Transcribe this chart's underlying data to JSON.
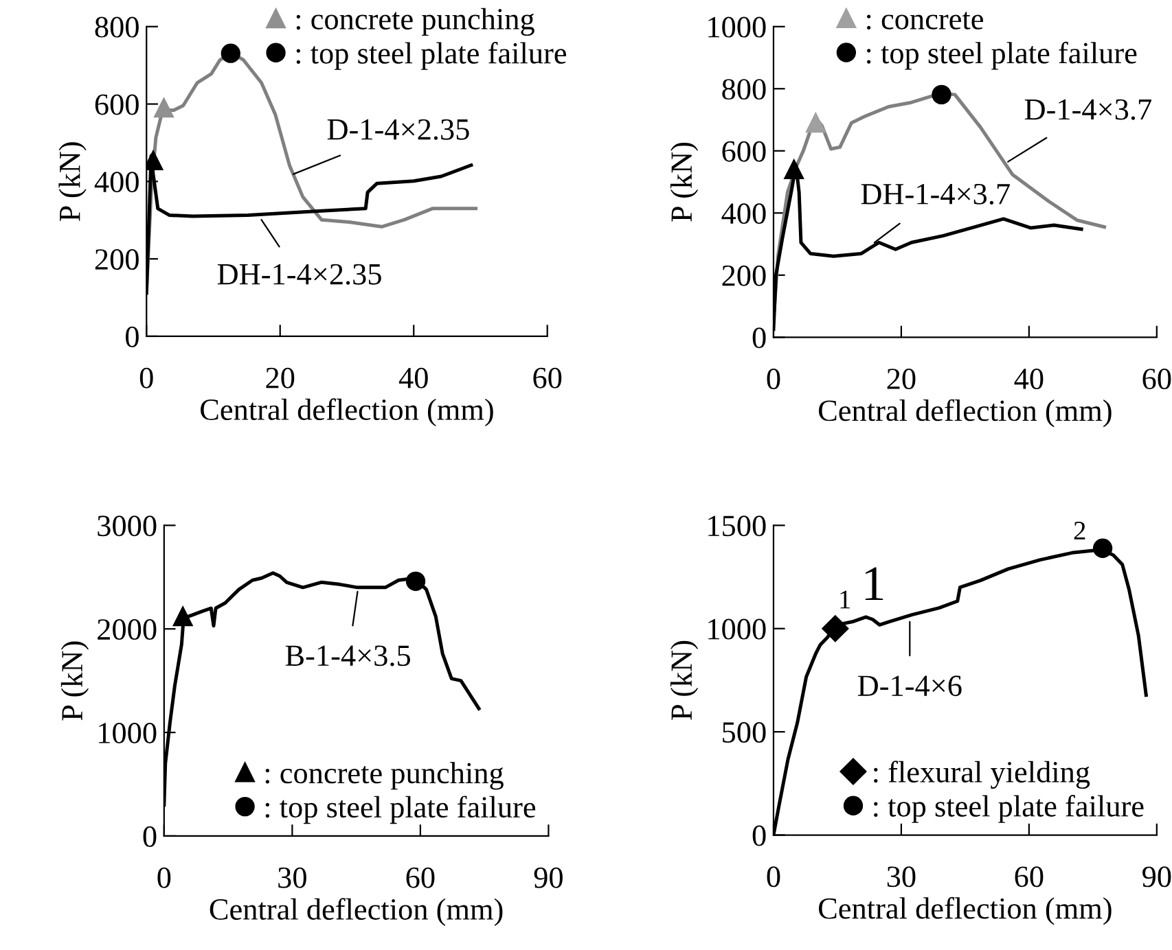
{
  "chart_data": [
    {
      "type": "line",
      "xlabel": "Central deflection (mm)",
      "ylabel": "P (kN)",
      "xlim": [
        0,
        60
      ],
      "ylim": [
        0,
        800
      ],
      "xticks": [
        0,
        20,
        40,
        60
      ],
      "yticks": [
        0,
        200,
        400,
        600,
        800
      ],
      "grid": false,
      "legend": "top right",
      "series": [
        {
          "color": "#808080",
          "x": [
            0,
            0.7,
            1.4,
            2.4,
            4.1,
            5.5,
            7.6,
            9.7,
            11,
            12.8,
            14.5,
            17.2,
            19.3,
            21.4,
            23.4,
            26.2,
            30.3,
            35.2,
            38.6,
            42.8,
            49.3
          ],
          "values": [
            112,
            372,
            513,
            584,
            584,
            596,
            655,
            678,
            714,
            731,
            714,
            655,
            572,
            442,
            360,
            301,
            295,
            283,
            301,
            330,
            330
          ]
        },
        {
          "color": "#000000",
          "x": [
            0,
            0.7,
            1,
            1.7,
            3.4,
            6.9,
            15.2,
            26.2,
            32.8,
            33.1,
            34.5,
            40,
            44.1,
            48.6
          ],
          "values": [
            112,
            466,
            419,
            330,
            313,
            310,
            313,
            324,
            330,
            372,
            395,
            401,
            413,
            442
          ]
        },
        {
          "type": "scatter",
          "marker": "triangle",
          "name": ": concrete punching",
          "color": "#909090",
          "x": [
            2.6
          ],
          "values": [
            590
          ]
        },
        {
          "type": "scatter",
          "marker": "circle",
          "name": ": top steel plate failure",
          "color": "#000000",
          "x": [
            12.6
          ],
          "values": [
            731
          ]
        },
        {
          "type": "scatter",
          "marker": "triangle",
          "color": "#000000",
          "x": [
            1
          ],
          "values": [
            454
          ]
        }
      ],
      "annotations": [
        {
          "text": "D-1-4×2.35",
          "x": 22,
          "y": 419
        },
        {
          "text": "DH-1-4×2.35",
          "x": 17.2,
          "y": 301
        }
      ]
    },
    {
      "type": "line",
      "xlabel": "Central deflection (mm)",
      "ylabel": "P (kN)",
      "xlim": [
        0,
        60
      ],
      "ylim": [
        0,
        1000
      ],
      "xticks": [
        0,
        20,
        40,
        60
      ],
      "yticks": [
        0,
        200,
        400,
        600,
        800,
        1000
      ],
      "grid": false,
      "legend": "top",
      "series": [
        {
          "color": "#808080",
          "x": [
            0,
            0.7,
            2.2,
            3.6,
            4.7,
            6.5,
            7.6,
            9,
            10.4,
            12.2,
            14.4,
            18,
            21.6,
            26.3,
            28.4,
            32.4,
            37.4,
            43.2,
            47.5,
            51.8
          ],
          "values": [
            56,
            261,
            467,
            551,
            602,
            709,
            680,
            606,
            612,
            690,
            712,
            742,
            756,
            786,
            781,
            676,
            524,
            436,
            377,
            355
          ]
        },
        {
          "color": "#000000",
          "x": [
            0,
            0.4,
            1.4,
            2.9,
            3.5,
            4,
            4.3,
            5.8,
            9.4,
            13.7,
            16.5,
            19.1,
            21.6,
            26.6,
            31.7,
            36,
            40.3,
            43.9,
            48.2
          ],
          "values": [
            26,
            203,
            320,
            482,
            555,
            467,
            305,
            269,
            261,
            269,
            305,
            283,
            305,
            327,
            356,
            381,
            352,
            361,
            348
          ]
        },
        {
          "type": "scatter",
          "marker": "triangle",
          "name": ": concrete",
          "color": "#a0a0a0",
          "x": [
            6.6
          ],
          "values": [
            690
          ]
        },
        {
          "type": "scatter",
          "marker": "circle",
          "name": ": top steel plate failure",
          "color": "#000000",
          "x": [
            26.3
          ],
          "values": [
            781
          ]
        },
        {
          "type": "scatter",
          "marker": "triangle",
          "color": "#000000",
          "x": [
            3.2
          ],
          "values": [
            540
          ]
        }
      ],
      "annotations": [
        {
          "text": "D-1-4×3.7",
          "x": 36.7,
          "y": 565
        },
        {
          "text": "DH-1-4×3.7",
          "x": 15.8,
          "y": 305
        }
      ]
    },
    {
      "type": "line",
      "xlabel": "Central deflection (mm)",
      "ylabel": "P (kN)",
      "xlim": [
        0,
        90
      ],
      "ylim": [
        0,
        3000
      ],
      "xticks": [
        0,
        30,
        60,
        90
      ],
      "yticks": [
        0,
        1000,
        2000,
        3000
      ],
      "grid": false,
      "legend": "bottom right",
      "series": [
        {
          "color": "#000000",
          "x": [
            0,
            0.3,
            1.4,
            2.5,
            4.1,
            4.6,
            5.7,
            8.9,
            11,
            11.6,
            12.1,
            14.3,
            17.5,
            20.7,
            22.8,
            25.5,
            27.1,
            28.7,
            32.5,
            36.8,
            41.1,
            45.3,
            51.8,
            54.9,
            58.7,
            61.4,
            63.6,
            65.2,
            67.3,
            69.5,
            73.7
          ],
          "values": [
            300,
            700,
            1100,
            1450,
            1850,
            2120,
            2120,
            2170,
            2200,
            2030,
            2200,
            2250,
            2380,
            2470,
            2490,
            2540,
            2510,
            2450,
            2400,
            2450,
            2430,
            2400,
            2400,
            2470,
            2490,
            2380,
            2120,
            1760,
            1520,
            1500,
            1230
          ]
        },
        {
          "type": "scatter",
          "marker": "triangle",
          "name": ": concrete punching",
          "color": "#000000",
          "x": [
            4.4
          ],
          "values": [
            2120
          ]
        },
        {
          "type": "scatter",
          "marker": "circle",
          "name": ": top steel plate failure",
          "color": "#000000",
          "x": [
            58.9
          ],
          "values": [
            2460
          ]
        }
      ],
      "annotations": [
        {
          "text": "B-1-4×3.5",
          "x": 45.3,
          "y": 2360
        }
      ]
    },
    {
      "type": "line",
      "xlabel": "Central deflection (mm)",
      "ylabel": "P (kN)",
      "xlim": [
        0,
        90
      ],
      "ylim": [
        0,
        1500
      ],
      "xticks": [
        0,
        30,
        60,
        90
      ],
      "yticks": [
        0,
        500,
        1000,
        1500
      ],
      "grid": false,
      "legend": "bottom right",
      "series": [
        {
          "color": "#000000",
          "x": [
            0,
            1.3,
            3.4,
            5.6,
            7.7,
            9.9,
            11,
            12.6,
            14.2,
            15.8,
            18.5,
            21.7,
            23.3,
            24.9,
            27.1,
            32.5,
            38.9,
            43.2,
            43.8,
            48.6,
            55.1,
            62.6,
            70.1,
            77.1,
            79.8,
            81.9,
            83.5,
            85.7,
            87.5
          ],
          "values": [
            0,
            144,
            367,
            544,
            767,
            878,
            922,
            956,
            1000,
            1022,
            1033,
            1056,
            1044,
            1018,
            1033,
            1067,
            1100,
            1133,
            1200,
            1233,
            1289,
            1333,
            1367,
            1382,
            1356,
            1311,
            1189,
            967,
            678
          ]
        },
        {
          "type": "scatter",
          "marker": "diamond",
          "name": ": flexural yielding",
          "color": "#000000",
          "x": [
            14.5
          ],
          "values": [
            1000
          ]
        },
        {
          "type": "scatter",
          "marker": "circle",
          "name": ": top steel plate failure",
          "color": "#000000",
          "x": [
            77.3
          ],
          "values": [
            1389
          ]
        }
      ],
      "annotations": [
        {
          "text": "D-1-4×6",
          "x": 32,
          "y": 1033
        },
        {
          "text": "1",
          "x": 14.5,
          "y": 1000
        },
        {
          "text": "1",
          "x": 19,
          "y": 1030
        },
        {
          "text": "2",
          "x": 77.3,
          "y": 1389
        }
      ]
    }
  ]
}
